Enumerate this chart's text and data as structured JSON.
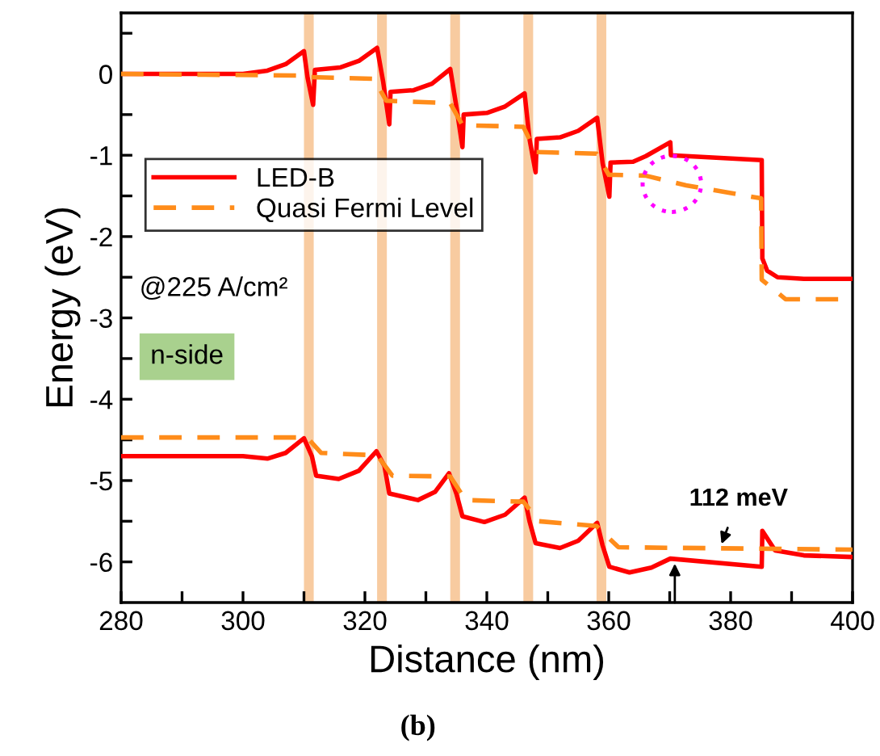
{
  "chart_data": {
    "type": "line",
    "xlabel": "Distance (nm)",
    "ylabel": "Energy (eV)",
    "xlim": [
      280,
      400
    ],
    "ylim": [
      -6.5,
      0.75
    ],
    "xticks": [
      280,
      {
        "value": 290,
        "label": null
      },
      300,
      {
        "value": 310,
        "label": null
      },
      320,
      {
        "value": 330,
        "label": null
      },
      340,
      {
        "value": 350,
        "label": null
      },
      360,
      {
        "value": 370,
        "label": null
      },
      380,
      {
        "value": 390,
        "label": null
      },
      400
    ],
    "yticks": [
      {
        "value": -6,
        "label": "-6"
      },
      {
        "value": -5.5,
        "label": null
      },
      {
        "value": -5,
        "label": "-5"
      },
      {
        "value": -4.5,
        "label": null
      },
      {
        "value": -4,
        "label": "-4"
      },
      {
        "value": -3.5,
        "label": null
      },
      {
        "value": -3,
        "label": "-3"
      },
      {
        "value": -2.5,
        "label": null
      },
      {
        "value": -2,
        "label": "-2"
      },
      {
        "value": -1.5,
        "label": null
      },
      {
        "value": -1,
        "label": "-1"
      },
      {
        "value": -0.5,
        "label": null
      },
      0,
      {
        "value": 0.5,
        "label": null
      }
    ],
    "grid": false,
    "legend": "top left",
    "series": [
      {
        "name": "LED-B",
        "color": "#ff0000",
        "line_style": "solid",
        "x": [
          280,
          300,
          304,
          307,
          310,
          310.6,
          311.5,
          311.8,
          316,
          319,
          322,
          323,
          324,
          324.2,
          328,
          331,
          334,
          335,
          336,
          336.2,
          340,
          343,
          346.2,
          347,
          348,
          348.2,
          352,
          355,
          358.1,
          359,
          360.1,
          360.3,
          364,
          366.1,
          370.1,
          370.2,
          385.1,
          385.2,
          386,
          387.7,
          392,
          400
        ],
        "values": [
          0,
          0,
          0.04,
          0.12,
          0.28,
          -0.05,
          -0.38,
          0.05,
          0.08,
          0.16,
          0.32,
          -0.1,
          -0.62,
          -0.22,
          -0.2,
          -0.12,
          0.06,
          -0.4,
          -0.9,
          -0.5,
          -0.48,
          -0.4,
          -0.24,
          -0.8,
          -1.21,
          -0.8,
          -0.78,
          -0.7,
          -0.54,
          -1.1,
          -1.51,
          -1.09,
          -1.08,
          -1.01,
          -0.84,
          -1.0,
          -1.06,
          -2.27,
          -2.42,
          -2.5,
          -2.52,
          -2.52
        ]
      },
      {
        "color": "#ff0000",
        "line_style": "solid",
        "x": [
          280,
          300,
          304,
          307,
          310,
          311.3,
          312,
          315.7,
          319,
          321.9,
          323.2,
          324,
          328.7,
          331.5,
          333.8,
          335,
          336,
          339.6,
          343,
          346.2,
          347,
          348,
          352,
          355,
          358.1,
          359,
          360.1,
          363.4,
          367,
          370.1,
          385.1,
          385.2,
          387.3,
          392,
          400
        ],
        "values": [
          -4.7,
          -4.7,
          -4.73,
          -4.66,
          -4.48,
          -4.7,
          -4.94,
          -4.98,
          -4.88,
          -4.64,
          -4.82,
          -5.16,
          -5.24,
          -5.14,
          -4.91,
          -5.16,
          -5.44,
          -5.51,
          -5.42,
          -5.21,
          -5.5,
          -5.77,
          -5.83,
          -5.74,
          -5.52,
          -5.8,
          -6.06,
          -6.13,
          -6.07,
          -5.96,
          -6.06,
          -5.62,
          -5.86,
          -5.92,
          -5.94
        ]
      },
      {
        "name": "Quasi Fermi Level",
        "color": "#ff8c1a",
        "line_style": "dashed",
        "x": [
          280,
          310,
          311,
          321.5,
          323.5,
          334,
          336,
          346,
          348,
          358,
          360,
          366,
          372.7,
          385,
          385.1,
          389,
          400
        ],
        "values": [
          0,
          -0.02,
          -0.04,
          -0.06,
          -0.33,
          -0.36,
          -0.63,
          -0.65,
          -0.96,
          -0.98,
          -1.24,
          -1.25,
          -1.37,
          -1.53,
          -2.53,
          -2.77,
          -2.77
        ]
      },
      {
        "color": "#ff8c1a",
        "line_style": "dashed",
        "x": [
          280,
          310.5,
          312.8,
          322,
          324.5,
          334,
          336.5,
          346,
          348.5,
          358,
          361.6,
          400
        ],
        "values": [
          -4.47,
          -4.47,
          -4.66,
          -4.69,
          -4.94,
          -4.95,
          -5.24,
          -5.26,
          -5.5,
          -5.56,
          -5.82,
          -5.85
        ]
      }
    ],
    "bands": [
      {
        "axis": "x",
        "from": 310,
        "to": 311.6,
        "color": "#f8cba0"
      },
      {
        "axis": "x",
        "from": 322,
        "to": 323.6,
        "color": "#f8cba0"
      },
      {
        "axis": "x",
        "from": 334,
        "to": 335.6,
        "color": "#f8cba0"
      },
      {
        "axis": "x",
        "from": 346,
        "to": 347.6,
        "color": "#f8cba0"
      },
      {
        "axis": "x",
        "from": 358,
        "to": 359.6,
        "color": "#f8cba0"
      }
    ],
    "annotations": [
      "@225 A/cm²",
      "n-side",
      {
        "text": "112 meV",
        "x": 378.5,
        "y": -5.78
      },
      "(b)"
    ]
  }
}
